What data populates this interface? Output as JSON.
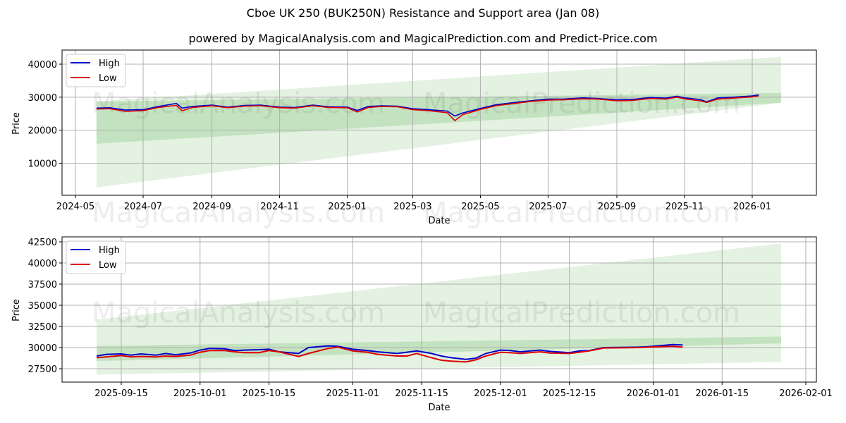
{
  "header": {
    "title": "Cboe UK 250 (BUK250N) Resistance and Support area (Jan 08)",
    "subtitle": "powered by MagicalAnalysis.com and MagicalPrediction.com and Predict-Price.com"
  },
  "watermarks": [
    "MagicalAnalysis.com",
    "MagicalPrediction.com"
  ],
  "colors": {
    "high": "#0000cc",
    "low": "#dd0000",
    "band_dark": "#a8d5a2",
    "band_light": "#c9e6c6",
    "grid": "#b0b0b0"
  },
  "chart_data": [
    {
      "type": "line",
      "title": "",
      "xlabel": "Date",
      "ylabel": "Price",
      "ylim": [
        0,
        44500
      ],
      "grid": true,
      "legend_position": "upper left",
      "legend": [
        "High",
        "Low"
      ],
      "x_ticks": [
        "2024-05",
        "2024-07",
        "2024-09",
        "2024-11",
        "2025-01",
        "2025-03",
        "2025-05",
        "2025-07",
        "2025-09",
        "2025-11",
        "2026-01"
      ],
      "y_ticks": [
        "10000",
        "20000",
        "30000",
        "40000"
      ],
      "x": [
        "2024-05-20",
        "2024-06-01",
        "2024-06-15",
        "2024-07-01",
        "2024-07-15",
        "2024-07-31",
        "2024-08-05",
        "2024-08-15",
        "2024-09-01",
        "2024-09-15",
        "2024-10-01",
        "2024-10-15",
        "2024-11-01",
        "2024-11-15",
        "2024-12-01",
        "2024-12-15",
        "2025-01-01",
        "2025-01-10",
        "2025-01-20",
        "2025-02-01",
        "2025-02-15",
        "2025-03-01",
        "2025-03-15",
        "2025-04-01",
        "2025-04-08",
        "2025-04-15",
        "2025-05-01",
        "2025-05-15",
        "2025-06-01",
        "2025-06-15",
        "2025-07-01",
        "2025-07-15",
        "2025-08-01",
        "2025-08-15",
        "2025-09-01",
        "2025-09-15",
        "2025-10-01",
        "2025-10-15",
        "2025-10-25",
        "2025-11-01",
        "2025-11-15",
        "2025-11-21",
        "2025-12-01",
        "2025-12-15",
        "2026-01-01",
        "2026-01-07"
      ],
      "series": [
        {
          "name": "High",
          "values": [
            26700,
            26800,
            26100,
            26200,
            27200,
            28100,
            26700,
            27200,
            27600,
            27000,
            27500,
            27600,
            27000,
            26900,
            27600,
            27100,
            27000,
            26000,
            27200,
            27400,
            27300,
            26500,
            26200,
            25800,
            24300,
            25200,
            26600,
            27700,
            28400,
            28900,
            29400,
            29400,
            29800,
            29600,
            29200,
            29300,
            29900,
            29700,
            30300,
            29800,
            29300,
            28600,
            29800,
            30000,
            30400,
            30700
          ]
        },
        {
          "name": "Low",
          "values": [
            26400,
            26500,
            25700,
            25900,
            26900,
            27500,
            25900,
            26900,
            27400,
            26800,
            27300,
            27400,
            26800,
            26700,
            27400,
            26900,
            26800,
            25500,
            26900,
            27200,
            27100,
            26200,
            25900,
            25300,
            22900,
            24700,
            26300,
            27400,
            28100,
            28700,
            29100,
            29200,
            29500,
            29400,
            28900,
            29000,
            29600,
            29400,
            30000,
            29500,
            28900,
            28400,
            29400,
            29700,
            30100,
            30400
          ]
        }
      ],
      "bands": [
        {
          "name": "support-light",
          "x_start": "2024-05-20",
          "x_end": "2026-01-27",
          "lower_start": 2700,
          "lower_end": 28300,
          "upper_start": 28700,
          "upper_end": 42200
        },
        {
          "name": "support-dark",
          "x_start": "2024-05-20",
          "x_end": "2026-01-27",
          "lower_start": 15900,
          "lower_end": 28300,
          "upper_start": 28700,
          "upper_end": 31300
        }
      ]
    },
    {
      "type": "line",
      "title": "",
      "xlabel": "Date",
      "ylabel": "Price",
      "ylim": [
        26000,
        43100
      ],
      "grid": true,
      "legend_position": "upper left",
      "legend": [
        "High",
        "Low"
      ],
      "x_ticks": [
        "2025-09-15",
        "2025-10-01",
        "2025-10-15",
        "2025-11-01",
        "2025-11-15",
        "2025-12-01",
        "2025-12-15",
        "2026-01-01",
        "2026-01-15",
        "2026-02-01"
      ],
      "y_ticks": [
        "27500",
        "30000",
        "32500",
        "35000",
        "37500",
        "40000",
        "42500"
      ],
      "x": [
        "2025-09-10",
        "2025-09-12",
        "2025-09-15",
        "2025-09-17",
        "2025-09-19",
        "2025-09-22",
        "2025-09-24",
        "2025-09-26",
        "2025-09-29",
        "2025-10-01",
        "2025-10-03",
        "2025-10-06",
        "2025-10-08",
        "2025-10-10",
        "2025-10-13",
        "2025-10-15",
        "2025-10-17",
        "2025-10-21",
        "2025-10-23",
        "2025-10-27",
        "2025-10-29",
        "2025-11-01",
        "2025-11-04",
        "2025-11-06",
        "2025-11-10",
        "2025-11-12",
        "2025-11-14",
        "2025-11-17",
        "2025-11-19",
        "2025-11-21",
        "2025-11-24",
        "2025-11-26",
        "2025-11-28",
        "2025-12-01",
        "2025-12-03",
        "2025-12-05",
        "2025-12-09",
        "2025-12-11",
        "2025-12-15",
        "2025-12-17",
        "2025-12-19",
        "2025-12-22",
        "2025-12-29",
        "2025-12-31",
        "2026-01-05",
        "2026-01-07"
      ],
      "series": [
        {
          "name": "High",
          "values": [
            29000,
            29200,
            29250,
            29100,
            29250,
            29100,
            29300,
            29150,
            29350,
            29700,
            29900,
            29850,
            29650,
            29700,
            29750,
            29800,
            29500,
            29300,
            30000,
            30200,
            30150,
            29800,
            29650,
            29500,
            29300,
            29450,
            29600,
            29300,
            29000,
            28800,
            28600,
            28750,
            29300,
            29700,
            29650,
            29500,
            29700,
            29550,
            29400,
            29600,
            29650,
            30000,
            30050,
            30100,
            30350,
            30300
          ]
        },
        {
          "name": "Low",
          "values": [
            28800,
            28900,
            29050,
            28900,
            28950,
            28900,
            29000,
            28950,
            29100,
            29450,
            29650,
            29650,
            29500,
            29400,
            29400,
            29650,
            29500,
            28950,
            29300,
            29900,
            30050,
            29600,
            29450,
            29200,
            29000,
            29000,
            29300,
            28800,
            28500,
            28400,
            28300,
            28550,
            29000,
            29450,
            29400,
            29300,
            29500,
            29350,
            29300,
            29450,
            29600,
            29950,
            30000,
            30050,
            30150,
            30050
          ]
        }
      ],
      "bands": [
        {
          "name": "support-light",
          "x_start": "2025-09-10",
          "x_end": "2026-01-27",
          "lower_start": 26800,
          "lower_end": 28300,
          "upper_start": 33300,
          "upper_end": 42300
        },
        {
          "name": "support-dark",
          "x_start": "2025-09-10",
          "x_end": "2026-01-27",
          "lower_start": 28400,
          "lower_end": 30500,
          "upper_start": 30200,
          "upper_end": 31300
        }
      ]
    }
  ]
}
